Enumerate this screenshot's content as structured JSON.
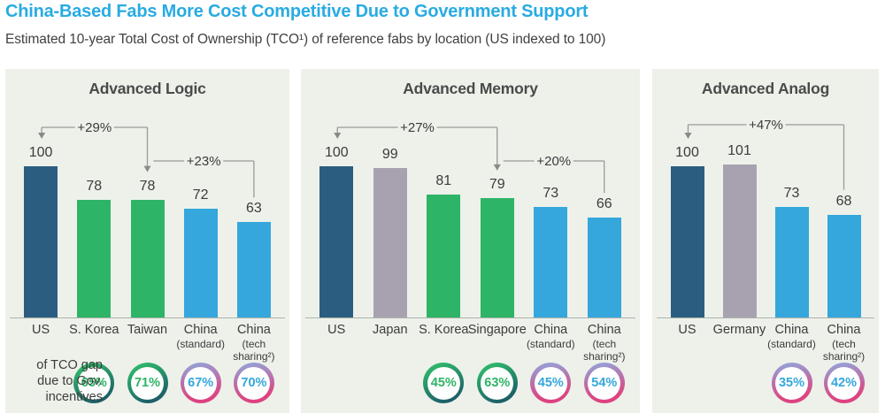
{
  "header": {
    "title": "China-Based Fabs More Cost Competitive Due to Government Support",
    "subtitle": "Estimated 10-year Total Cost of Ownership (TCO¹) of reference fabs by location (US indexed to 100)"
  },
  "left_note": {
    "line1": "of TCO gap",
    "line2": "due to Gov.",
    "line3": "incentives"
  },
  "colors": {
    "title_accent": "#29ABE2",
    "bar_navy": "#2B5D80",
    "bar_green": "#2EB467",
    "bar_blue": "#35A7DC",
    "bar_gray": "#A8A2B0",
    "panel_bg": "#EDF1EA",
    "annotation_line": "#979C97",
    "text_dark": "#3C3C3C",
    "badge_green_text": "#2EB467",
    "badge_china_text": "#35A7DC"
  },
  "chart_data": [
    {
      "type": "bar",
      "title": "Advanced Logic",
      "ylim": [
        0,
        110
      ],
      "categories": [
        "US",
        "S. Korea",
        "Taiwan",
        "China (standard)",
        "China (tech sharing²)"
      ],
      "values": [
        100,
        78,
        78,
        72,
        63
      ],
      "bars": [
        {
          "lines": [
            "US"
          ],
          "value": 100,
          "color": "navy"
        },
        {
          "lines": [
            "S. Korea"
          ],
          "value": 78,
          "color": "green"
        },
        {
          "lines": [
            "Taiwan"
          ],
          "value": 78,
          "color": "green"
        },
        {
          "lines": [
            "China",
            "(standard)"
          ],
          "value": 72,
          "color": "blue"
        },
        {
          "lines": [
            "China",
            "(tech",
            "sharing²)"
          ],
          "value": 63,
          "color": "blue"
        }
      ],
      "annotations": [
        {
          "label": "+29%",
          "target": 0,
          "source": 2,
          "level": 66,
          "left_arrow": true,
          "right_arrow": true
        },
        {
          "label": "+23%",
          "target": 2,
          "source": 4,
          "level": 104,
          "left_arrow": false,
          "right_arrow": false
        }
      ],
      "badges": [
        {
          "bar": 1,
          "text": "65%",
          "style": "green"
        },
        {
          "bar": 2,
          "text": "71%",
          "style": "green"
        },
        {
          "bar": 3,
          "text": "67%",
          "style": "china"
        },
        {
          "bar": 4,
          "text": "70%",
          "style": "china"
        }
      ]
    },
    {
      "type": "bar",
      "title": "Advanced Memory",
      "ylim": [
        0,
        110
      ],
      "categories": [
        "US",
        "Japan",
        "S. Korea",
        "Singapore",
        "China (standard)",
        "China (tech sharing²)"
      ],
      "values": [
        100,
        99,
        81,
        79,
        73,
        66
      ],
      "bars": [
        {
          "lines": [
            "US"
          ],
          "value": 100,
          "color": "navy"
        },
        {
          "lines": [
            "Japan"
          ],
          "value": 99,
          "color": "gray"
        },
        {
          "lines": [
            "S. Korea"
          ],
          "value": 81,
          "color": "green"
        },
        {
          "lines": [
            "Singapore"
          ],
          "value": 79,
          "color": "green"
        },
        {
          "lines": [
            "China",
            "(standard)"
          ],
          "value": 73,
          "color": "blue"
        },
        {
          "lines": [
            "China",
            "(tech",
            "sharing²)"
          ],
          "value": 66,
          "color": "blue"
        }
      ],
      "annotations": [
        {
          "label": "+27%",
          "target": 0,
          "source": 3,
          "level": 66,
          "left_arrow": true,
          "right_arrow": true
        },
        {
          "label": "+20%",
          "target": 3,
          "source": 5,
          "level": 104,
          "left_arrow": false,
          "right_arrow": false
        }
      ],
      "badges": [
        {
          "bar": 2,
          "text": "45%",
          "style": "green"
        },
        {
          "bar": 3,
          "text": "63%",
          "style": "green"
        },
        {
          "bar": 4,
          "text": "45%",
          "style": "china"
        },
        {
          "bar": 5,
          "text": "54%",
          "style": "china"
        }
      ]
    },
    {
      "type": "bar",
      "title": "Advanced Analog",
      "ylim": [
        0,
        110
      ],
      "categories": [
        "US",
        "Germany",
        "China (standard)",
        "China (tech sharing²)"
      ],
      "values": [
        100,
        101,
        73,
        68
      ],
      "bars": [
        {
          "lines": [
            "US"
          ],
          "value": 100,
          "color": "navy"
        },
        {
          "lines": [
            "Germany"
          ],
          "value": 101,
          "color": "gray"
        },
        {
          "lines": [
            "China",
            "(standard)"
          ],
          "value": 73,
          "color": "blue"
        },
        {
          "lines": [
            "China",
            "(tech",
            "sharing²)"
          ],
          "value": 68,
          "color": "blue"
        }
      ],
      "annotations": [
        {
          "label": "+47%",
          "target": 0,
          "source": 3,
          "level": 63,
          "left_arrow": true,
          "right_arrow": false
        }
      ],
      "badges": [
        {
          "bar": 2,
          "text": "35%",
          "style": "china"
        },
        {
          "bar": 3,
          "text": "42%",
          "style": "china"
        }
      ]
    }
  ]
}
